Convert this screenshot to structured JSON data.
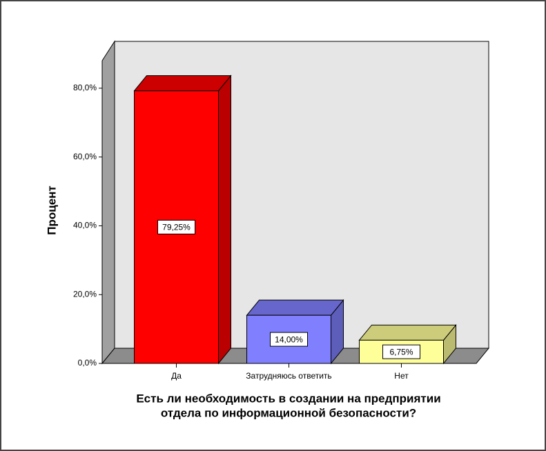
{
  "chart_data": {
    "type": "bar3d",
    "y_label": "Процент",
    "x_label": [
      "Есть ли необходимость в создании на предприятии",
      "отдела по информационной безопасности?"
    ],
    "categories": [
      "Да",
      "Затрудняюсь ответить",
      "Нет"
    ],
    "values": [
      79.25,
      14.0,
      6.75
    ],
    "value_labels": [
      "79,25%",
      "14,00%",
      "6,75%"
    ],
    "colors": [
      "#ff0000",
      "#8080ff",
      "#ffff99"
    ],
    "ylim": [
      0,
      88
    ],
    "yticks": [
      {
        "value": 0,
        "label": "0,0%"
      },
      {
        "value": 20,
        "label": "20,0%"
      },
      {
        "value": 40,
        "label": "40,0%"
      },
      {
        "value": 60,
        "label": "60,0%"
      },
      {
        "value": 80,
        "label": "80,0%"
      }
    ],
    "grid": false
  }
}
